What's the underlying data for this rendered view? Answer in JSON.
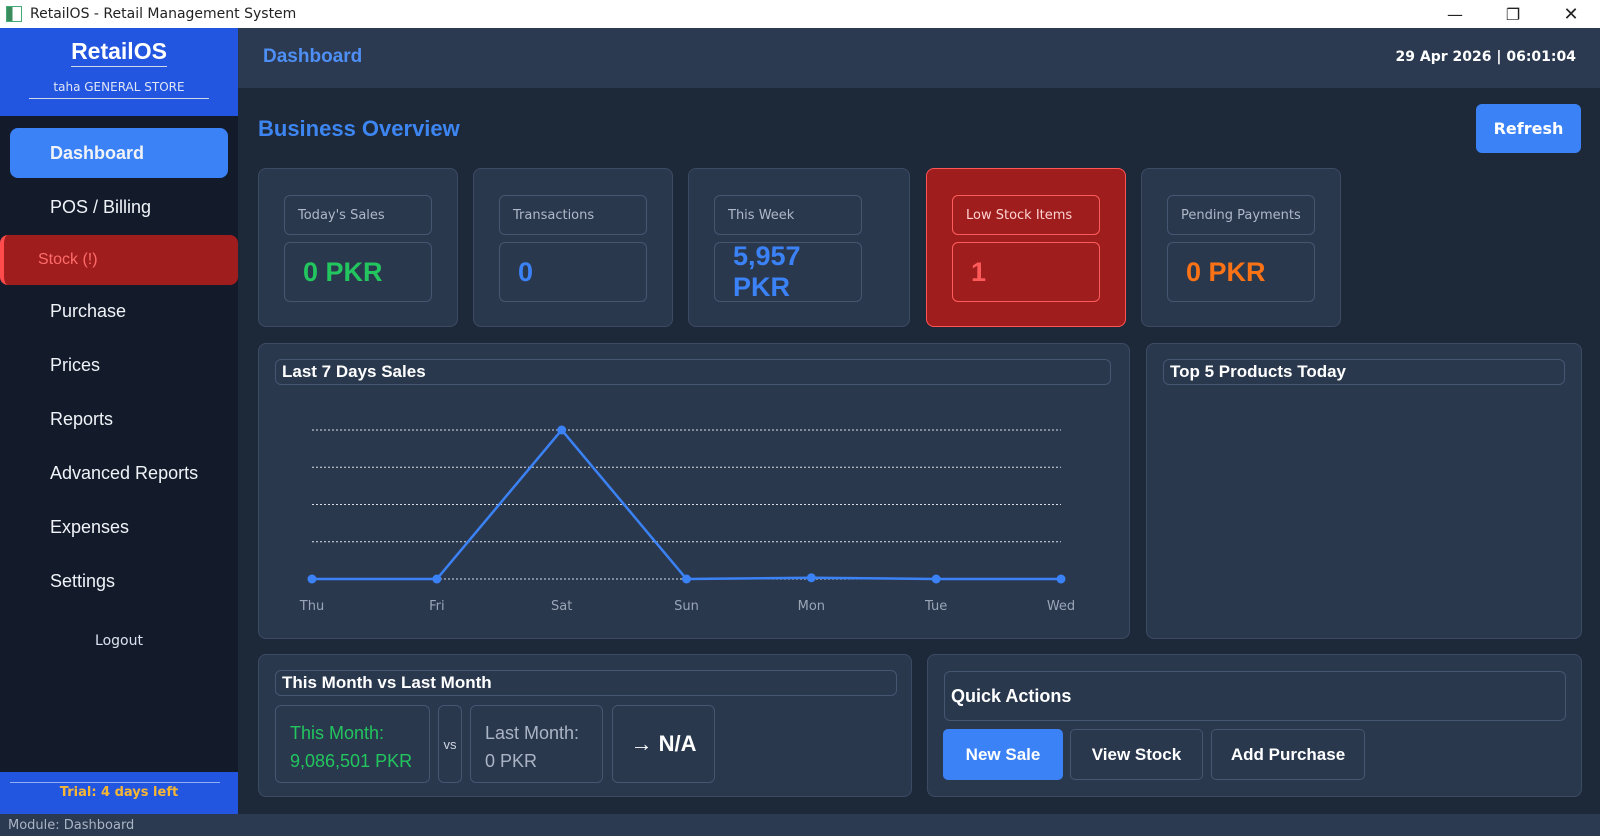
{
  "window": {
    "title": "RetailOS - Retail Management System"
  },
  "sidebar": {
    "brand": "RetailOS",
    "store": "taha GENERAL STORE",
    "items": [
      {
        "label": "Dashboard"
      },
      {
        "label": "POS / Billing"
      },
      {
        "label": "Stock (!)"
      },
      {
        "label": "Purchase"
      },
      {
        "label": "Prices"
      },
      {
        "label": "Reports"
      },
      {
        "label": "Advanced Reports"
      },
      {
        "label": "Expenses"
      },
      {
        "label": "Settings"
      }
    ],
    "logout": "Logout",
    "trial": "Trial: 4 days left"
  },
  "header": {
    "title": "Dashboard",
    "datetime": "29 Apr 2026  |  06:01:04"
  },
  "overview": {
    "title": "Business Overview",
    "refresh": "Refresh"
  },
  "stats": [
    {
      "label": "Today's Sales",
      "value": "0 PKR",
      "color": "#22c55e"
    },
    {
      "label": "Transactions",
      "value": "0",
      "color": "#3b82f6"
    },
    {
      "label": "This Week",
      "value": "5,957 PKR",
      "color": "#3b82f6"
    },
    {
      "label": "Low Stock Items",
      "value": "1",
      "color": "#ff5a5a"
    },
    {
      "label": "Pending Payments",
      "value": "0 PKR",
      "color": "#f97316"
    }
  ],
  "sales_panel": {
    "title": "Last 7 Days Sales"
  },
  "chart_data": {
    "type": "line",
    "title": "Last 7 Days Sales",
    "categories": [
      "Thu",
      "Fri",
      "Sat",
      "Sun",
      "Mon",
      "Tue",
      "Wed"
    ],
    "values": [
      0,
      0,
      5957,
      0,
      50,
      0,
      0
    ],
    "ylim": [
      0,
      5957
    ],
    "grid": true,
    "color": "#3b82f6"
  },
  "top_products": {
    "title": "Top 5 Products Today"
  },
  "comparison": {
    "title": "This Month vs Last Month",
    "this_month_label": "This Month:",
    "this_month_value": "9,086,501 PKR",
    "vs": "vs",
    "last_month_label": "Last Month:",
    "last_month_value": "0 PKR",
    "change": "→ N/A"
  },
  "quick_actions": {
    "title": "Quick Actions",
    "new_sale": "New Sale",
    "view_stock": "View Stock",
    "add_purchase": "Add Purchase"
  },
  "status": {
    "module": "Module: Dashboard"
  }
}
